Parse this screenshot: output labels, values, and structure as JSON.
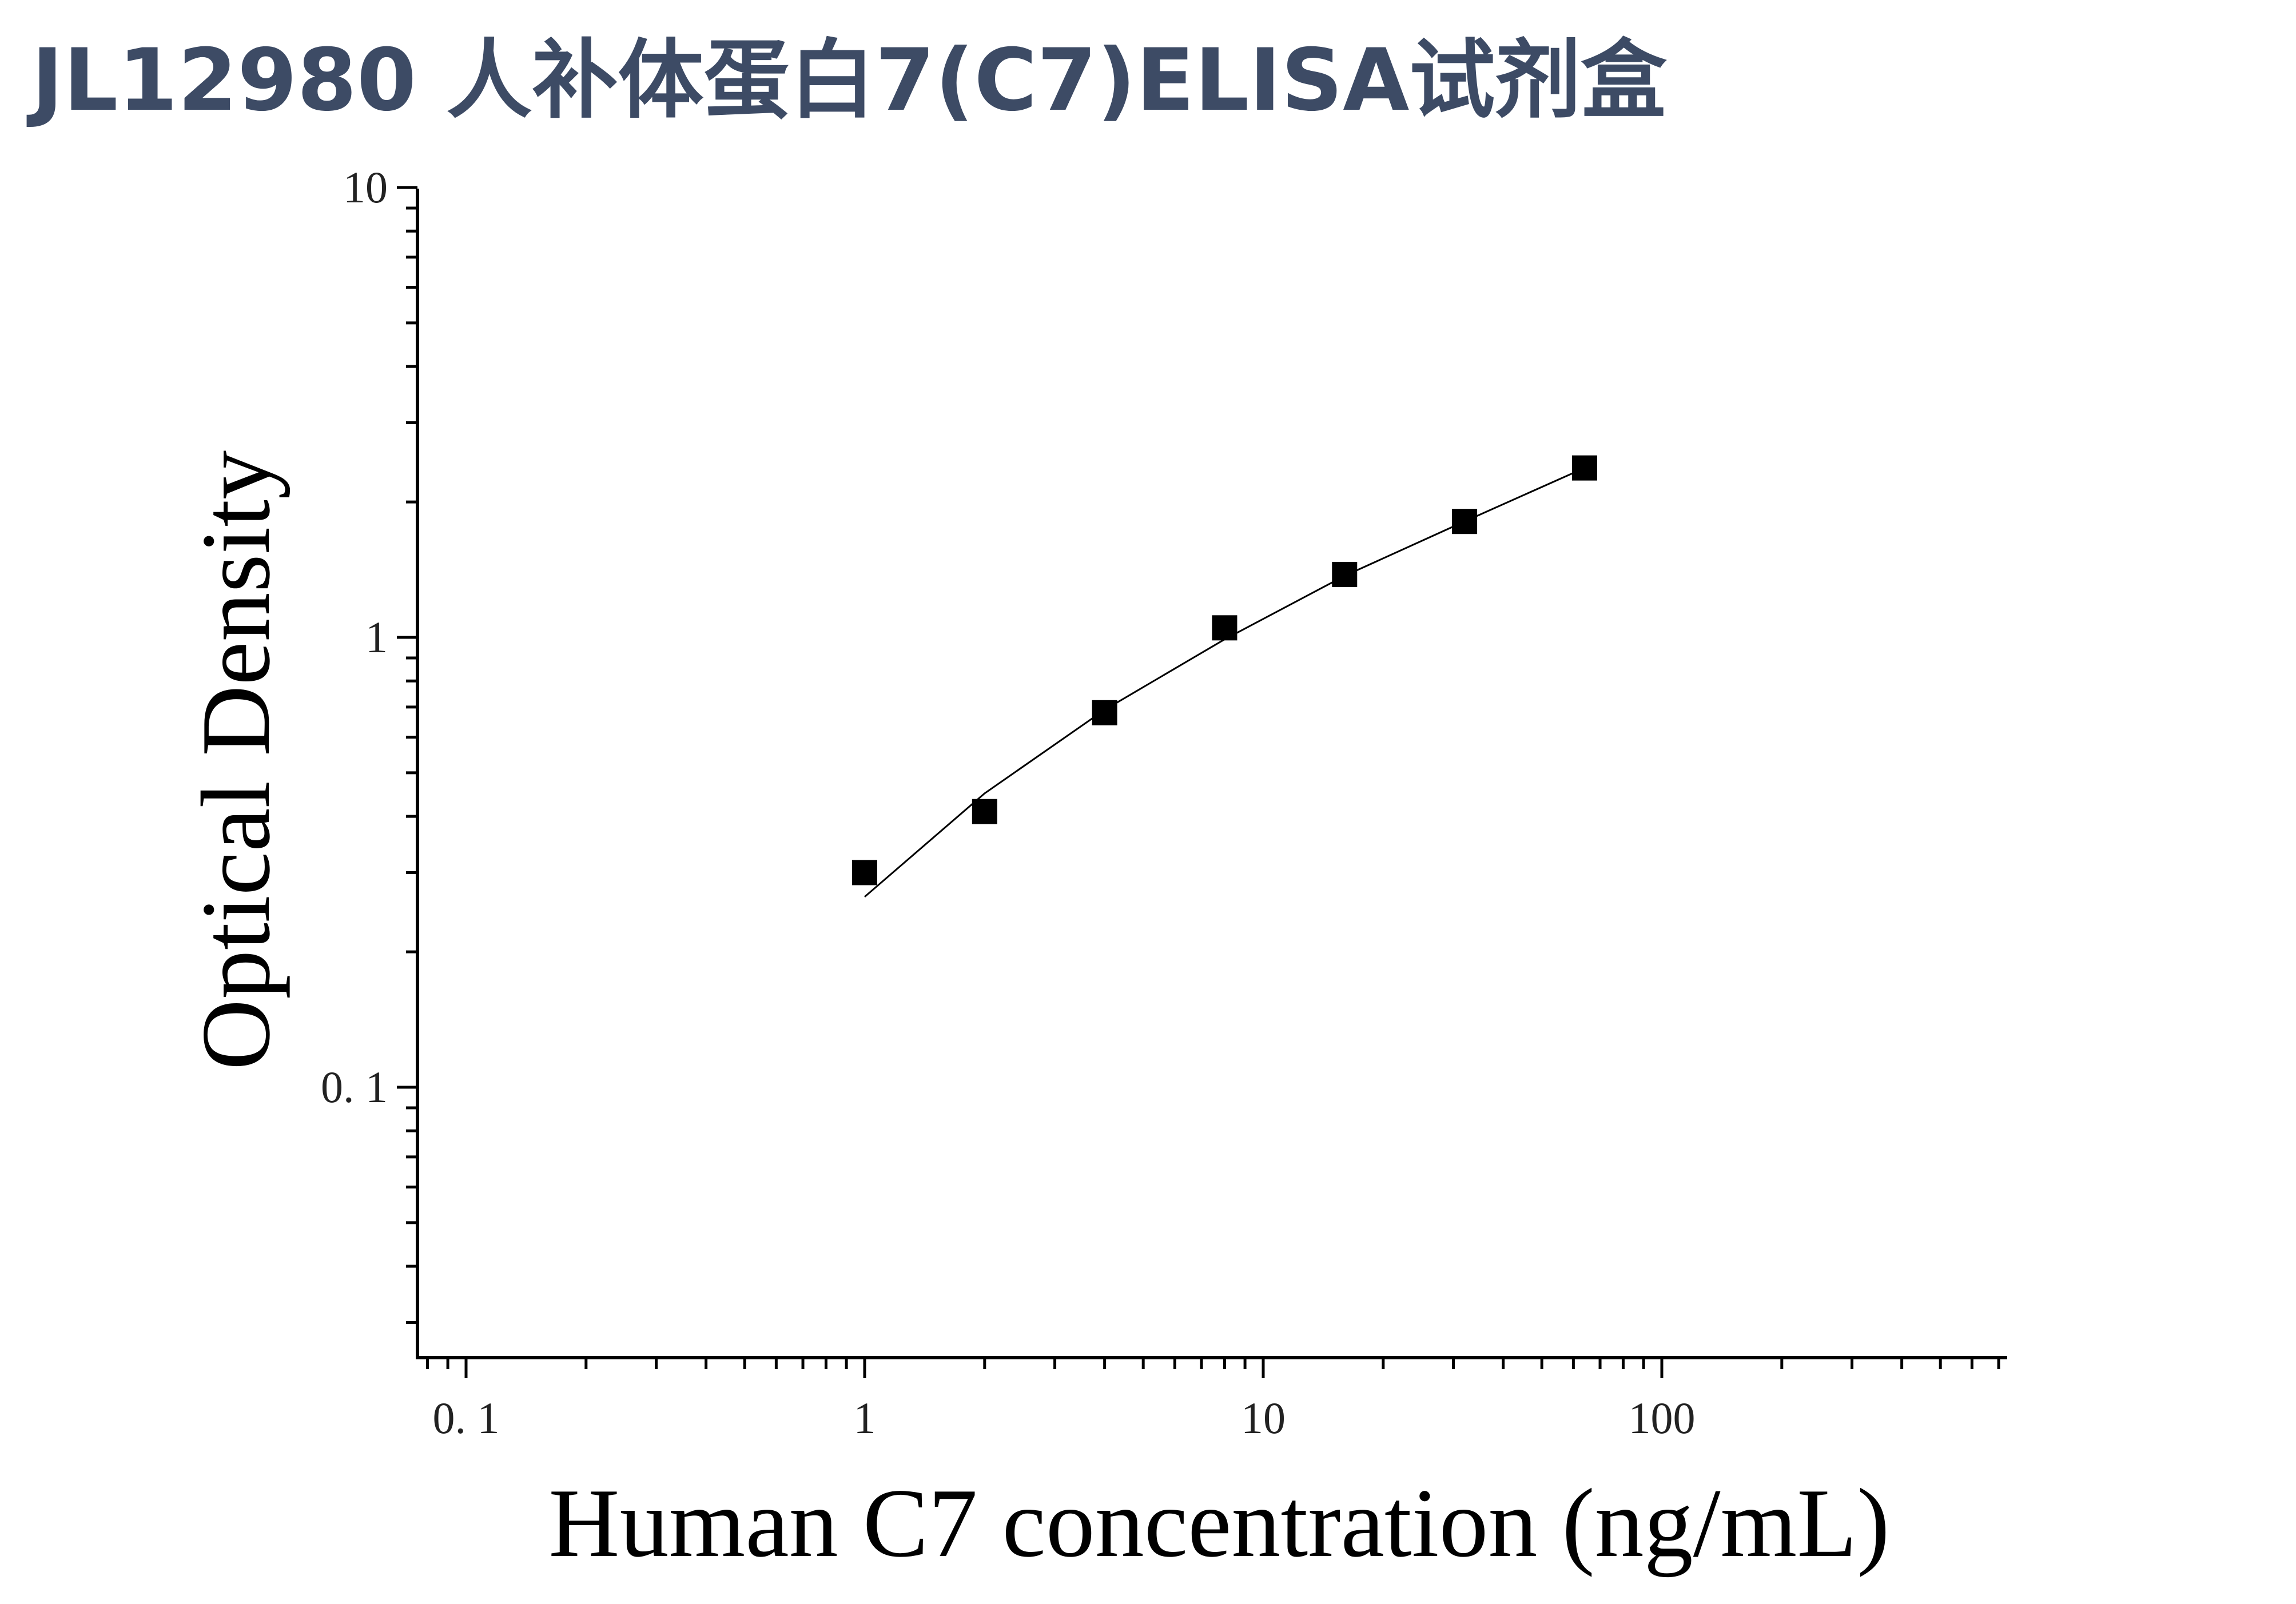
{
  "page": {
    "title": "JL12980 人补体蛋白7(C7)ELISA试剂盒"
  },
  "colors": {
    "title": "#3d4b65",
    "axis": "#000000",
    "marker": "#000000",
    "fit_line": "#000000"
  },
  "chart_data": {
    "type": "scatter",
    "xlabel": "Human C7 concentration (ng/mL)",
    "ylabel": "Optical Density",
    "x_scale": "log",
    "y_scale": "log",
    "xlim": [
      0.08,
      650
    ],
    "ylim": [
      0.03,
      10
    ],
    "x_ticks": [
      {
        "value": 0.1,
        "label": "0. 1"
      },
      {
        "value": 1,
        "label": "1"
      },
      {
        "value": 10,
        "label": "10"
      },
      {
        "value": 100,
        "label": "100"
      }
    ],
    "y_ticks": [
      {
        "value": 0.1,
        "label": "0. 1"
      },
      {
        "value": 1,
        "label": "1"
      },
      {
        "value": 10,
        "label": "10"
      }
    ],
    "grid": false,
    "legend": "none",
    "series": [
      {
        "marker": "square",
        "points": [
          {
            "x": 1,
            "y": 0.3
          },
          {
            "x": 2,
            "y": 0.41
          },
          {
            "x": 4,
            "y": 0.68
          },
          {
            "x": 8,
            "y": 1.05
          },
          {
            "x": 16,
            "y": 1.38
          },
          {
            "x": 32,
            "y": 1.81
          },
          {
            "x": 64,
            "y": 2.38
          }
        ]
      }
    ],
    "fit_curve": {
      "x_range": [
        1,
        64
      ],
      "points": [
        {
          "x": 1,
          "y": 0.265
        },
        {
          "x": 2,
          "y": 0.45
        },
        {
          "x": 4,
          "y": 0.69
        },
        {
          "x": 8,
          "y": 0.99
        },
        {
          "x": 16,
          "y": 1.37
        },
        {
          "x": 32,
          "y": 1.81
        },
        {
          "x": 64,
          "y": 2.38
        }
      ]
    }
  }
}
